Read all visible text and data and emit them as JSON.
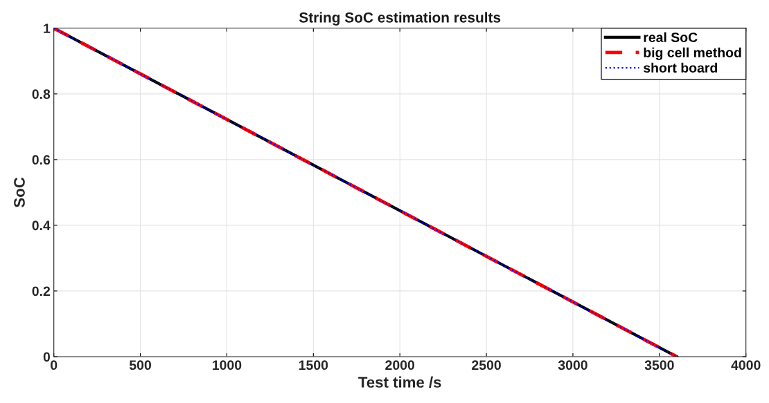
{
  "chart_data": {
    "type": "line",
    "title": "String SoC estimation results",
    "xlabel": "Test time /s",
    "ylabel": "SoC",
    "x": [
      0,
      3600
    ],
    "xlim": [
      0,
      4000
    ],
    "xticks": [
      0,
      500,
      1000,
      1500,
      2000,
      2500,
      3000,
      3500,
      4000
    ],
    "ylim": [
      0,
      1
    ],
    "yticks": [
      0,
      0.2,
      0.4,
      0.6,
      0.8,
      1
    ],
    "grid": true,
    "legend": "top right",
    "series": [
      {
        "name": "real SoC",
        "color": "#000000",
        "line_style": "solid",
        "values": [
          1,
          0
        ]
      },
      {
        "name": "big cell method",
        "color": "#ff0000",
        "line_style": "dashed",
        "values": [
          1,
          0
        ]
      },
      {
        "name": "short board",
        "color": "#0000ff",
        "line_style": "dotted",
        "values": [
          1,
          0
        ]
      }
    ]
  }
}
